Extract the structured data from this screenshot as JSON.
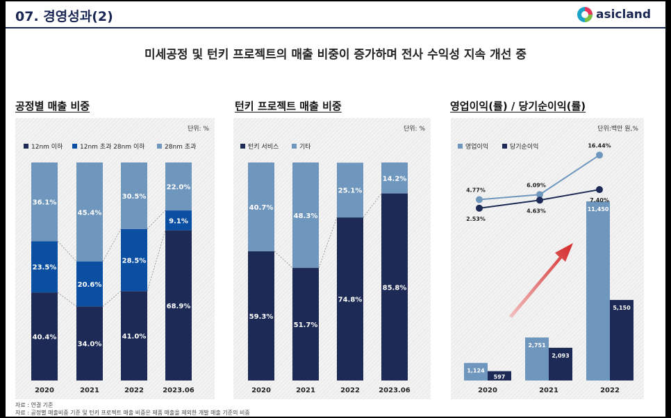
{
  "header": {
    "title": "07. 경영성과(2)",
    "logo_text": "asicland"
  },
  "headline": "미세공정 및 턴키 프로젝트의 매출 비중이 증가하며 전사 수익성 지속 개선 중",
  "footnotes": [
    "자료 : 연결 기준",
    "자료 : 공정별 매출비중 기준 및 턴키 프로젝트 매출 비중은 제품 매출을 제외한 개발 매출 기준의 비중"
  ],
  "colors": {
    "navy": "#1c2a55",
    "blue": "#0b4fa3",
    "light": "#6f96bd",
    "arrow": "#d42a2a"
  },
  "chart_data": [
    {
      "type": "bar",
      "stacked": true,
      "title": "공정별 매출 비중",
      "unit": "단위: %",
      "categories": [
        "2020",
        "2021",
        "2022",
        "2023.06"
      ],
      "series": [
        {
          "name": "12nm 이하",
          "values": [
            40.4,
            34.0,
            41.0,
            68.9
          ],
          "labels": [
            "40.4%",
            "34.0%",
            "41.0%",
            "68.9%"
          ]
        },
        {
          "name": "12nm 초과 28nm 이하",
          "values": [
            23.5,
            20.6,
            28.5,
            9.1
          ],
          "labels": [
            "23.5%",
            "20.6%",
            "28.5%",
            "9.1%"
          ]
        },
        {
          "name": "28nm 초과",
          "values": [
            36.1,
            45.4,
            30.5,
            22.0
          ],
          "labels": [
            "36.1%",
            "45.4%",
            "30.5%",
            "22.0%"
          ]
        }
      ],
      "ylim": [
        0,
        100
      ]
    },
    {
      "type": "bar",
      "stacked": true,
      "title": "턴키 프로젝트 매출 비중",
      "unit": "단위: %",
      "categories": [
        "2020",
        "2021",
        "2022",
        "2023.06"
      ],
      "series": [
        {
          "name": "턴키 서비스",
          "values": [
            59.3,
            51.7,
            74.8,
            85.8
          ],
          "labels": [
            "59.3%",
            "51.7%",
            "74.8%",
            "85.8%"
          ]
        },
        {
          "name": "기타",
          "values": [
            40.7,
            48.3,
            25.1,
            14.2
          ],
          "labels": [
            "40.7%",
            "48.3%",
            "25.1%",
            "14.2%"
          ]
        }
      ],
      "ylim": [
        0,
        100
      ]
    },
    {
      "type": "bar",
      "title": "영업이익(률) / 당기순이익(률)",
      "unit": "단위:백만 원,%",
      "categories": [
        "2020",
        "2021",
        "2022"
      ],
      "series": [
        {
          "name": "영업이익",
          "values": [
            1124,
            2751,
            11450
          ],
          "labels": [
            "1,124",
            "2,751",
            "11,450"
          ]
        },
        {
          "name": "당기순이익",
          "values": [
            597,
            2093,
            5150
          ],
          "labels": [
            "597",
            "2,093",
            "5,150"
          ]
        }
      ],
      "margin_lines": [
        {
          "values": [
            4.77,
            6.09,
            16.44
          ],
          "labels": [
            "4.77%",
            "6.09%",
            "16.44%"
          ]
        },
        {
          "values": [
            2.53,
            4.63,
            7.4
          ],
          "labels": [
            "2.53%",
            "4.63%",
            "7.40%"
          ]
        }
      ]
    }
  ]
}
